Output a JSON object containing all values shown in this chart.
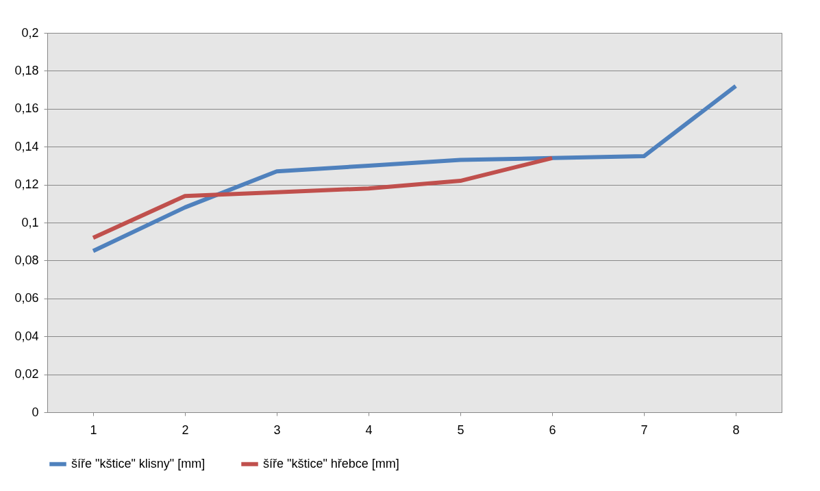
{
  "chart_data": {
    "type": "line",
    "categories": [
      "1",
      "2",
      "3",
      "4",
      "5",
      "6",
      "7",
      "8"
    ],
    "series": [
      {
        "name": "šíře \"kštice\" klisny\" [mm]",
        "color": "#4f81bd",
        "values": [
          0.085,
          0.108,
          0.127,
          0.13,
          0.133,
          0.134,
          0.135,
          0.172
        ]
      },
      {
        "name": "šíře \"kštice\" hřebce [mm]",
        "color": "#c0504d",
        "values": [
          0.092,
          0.114,
          0.116,
          0.118,
          0.122,
          0.134,
          null,
          null
        ]
      }
    ],
    "ylim": [
      0,
      0.2
    ],
    "yticks": [
      0,
      {
        "value": 0.02,
        "label": "0,02"
      },
      {
        "value": 0.04,
        "label": "0,04"
      },
      {
        "value": 0.06,
        "label": "0,06"
      },
      {
        "value": 0.08,
        "label": "0,08"
      },
      {
        "value": 0.1,
        "label": "0,1"
      },
      {
        "value": 0.12,
        "label": "0,12"
      },
      {
        "value": 0.14,
        "label": "0,14"
      },
      {
        "value": 0.16,
        "label": "0,16"
      },
      {
        "value": 0.18,
        "label": "0,18"
      },
      {
        "value": 0.2,
        "label": "0,2"
      }
    ],
    "grid": "y",
    "legend": "bottom",
    "line_style": "solid",
    "marker": "none"
  }
}
